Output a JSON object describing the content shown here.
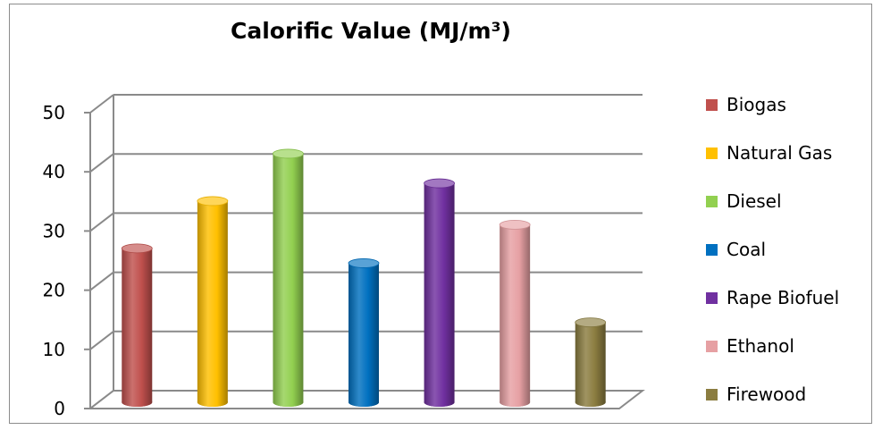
{
  "chart_data": {
    "type": "bar",
    "title": "Calorific Value (MJ/m³)",
    "categories": [
      "Biogas",
      "Natural Gas",
      "Diesel",
      "Coal",
      "Rape Biofuel",
      "Ethanol",
      "Firewood"
    ],
    "values": [
      26,
      34,
      42,
      23.5,
      37,
      30,
      13.5
    ],
    "colors": [
      "#c0504d",
      "#ffc000",
      "#92d050",
      "#0070c0",
      "#7030a0",
      "#e6a0a3",
      "#8b7d40"
    ],
    "ylim": [
      0,
      50
    ],
    "yticks": [
      "0",
      "10",
      "20",
      "30",
      "40",
      "50"
    ],
    "grid": true,
    "style": "3d-cylinder",
    "legend_position": "right"
  }
}
